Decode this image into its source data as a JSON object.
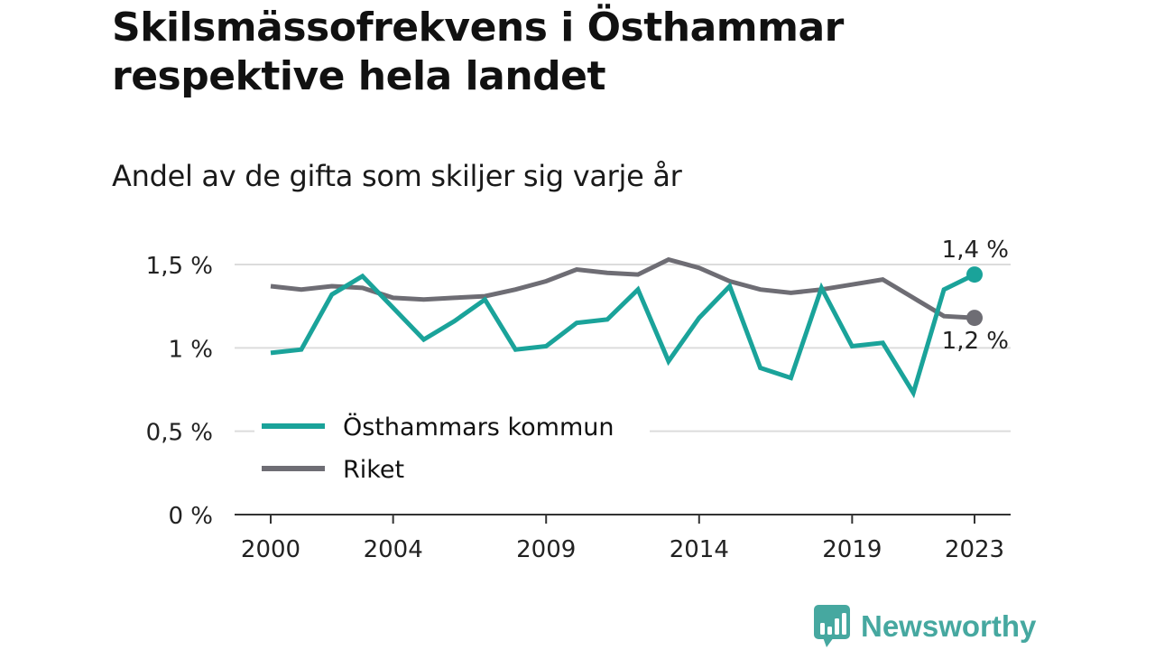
{
  "title": "Skilsmässofrekvens i Östhammar respektive hela landet",
  "subtitle": "Andel av de gifta som skiljer sig varje år",
  "brand": "Newsworthy",
  "colors": {
    "osthammar": "#1aa39a",
    "riket": "#6e6d74",
    "grid": "#dcdcdc",
    "axis": "#333333",
    "brand": "#46a8a0"
  },
  "chart_data": {
    "type": "line",
    "x": [
      2000,
      2001,
      2002,
      2003,
      2004,
      2005,
      2006,
      2007,
      2008,
      2009,
      2010,
      2011,
      2012,
      2013,
      2014,
      2015,
      2016,
      2017,
      2018,
      2019,
      2020,
      2021,
      2022,
      2023
    ],
    "x_tick_labels": [
      "2000",
      "2004",
      "2009",
      "2014",
      "2019",
      "2023"
    ],
    "x_ticks": [
      2000,
      2004,
      2009,
      2014,
      2019,
      2023
    ],
    "y_tick_labels": [
      "0 %",
      "0,5 %",
      "1 %",
      "1,5 %"
    ],
    "y_ticks": [
      0,
      0.5,
      1,
      1.5
    ],
    "ylim": [
      0,
      1.5
    ],
    "grid": true,
    "legend_position": "bottom-left",
    "series": [
      {
        "name": "Östhammars kommun",
        "color": "#1aa39a",
        "values": [
          0.97,
          0.99,
          1.32,
          1.43,
          1.24,
          1.05,
          1.16,
          1.29,
          0.99,
          1.01,
          1.15,
          1.17,
          1.35,
          0.92,
          1.18,
          1.37,
          0.88,
          0.82,
          1.36,
          1.01,
          1.03,
          0.73,
          1.35,
          1.44
        ],
        "end_label": "1,4 %"
      },
      {
        "name": "Riket",
        "color": "#6e6d74",
        "values": [
          1.37,
          1.35,
          1.37,
          1.36,
          1.3,
          1.29,
          1.3,
          1.31,
          1.35,
          1.4,
          1.47,
          1.45,
          1.44,
          1.53,
          1.48,
          1.4,
          1.35,
          1.33,
          1.35,
          1.38,
          1.41,
          1.3,
          1.19,
          1.18
        ],
        "end_label": "1,2 %"
      }
    ]
  }
}
